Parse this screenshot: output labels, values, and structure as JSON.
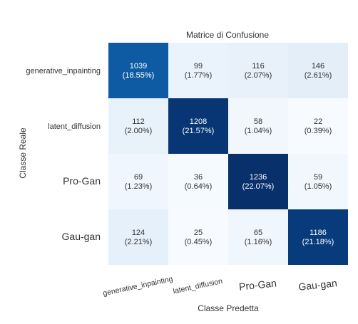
{
  "chart_data": {
    "type": "heatmap",
    "title": "Matrice di Confusione",
    "xlabel": "Classe Predetta",
    "ylabel": "Classe Reale",
    "row_labels": [
      "generative_inpainting",
      "latent_diffusion",
      "Pro-Gan",
      "Gau-gan"
    ],
    "col_labels": [
      "generative_inpainting",
      "latent_diffusion",
      "Pro-Gan",
      "Gau-gan"
    ],
    "values": [
      [
        1039,
        99,
        116,
        146
      ],
      [
        112,
        1208,
        58,
        22
      ],
      [
        69,
        36,
        1236,
        59
      ],
      [
        124,
        25,
        65,
        1186
      ]
    ],
    "percents": [
      [
        "(18.55%)",
        "(1.77%)",
        "(2.07%)",
        "(2.61%)"
      ],
      [
        "(2.00%)",
        "(21.57%)",
        "(1.04%)",
        "(0.39%)"
      ],
      [
        "(1.23%)",
        "(0.64%)",
        "(22.07%)",
        "(1.05%)"
      ],
      [
        "(2.21%)",
        "(0.45%)",
        "(1.16%)",
        "(21.18%)"
      ]
    ],
    "colormap": "Blues"
  }
}
